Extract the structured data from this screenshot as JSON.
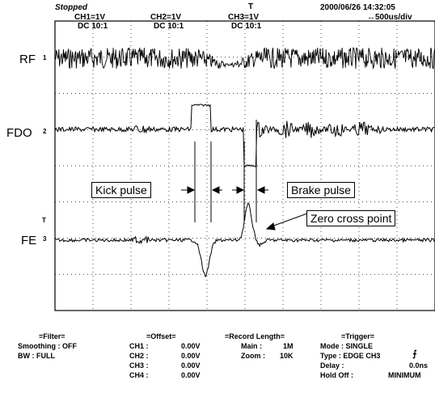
{
  "header": {
    "status": "Stopped",
    "trigger_marker": "T",
    "datetime": "2000/06/26  14:32:05",
    "ch1_scale": "CH1=1V",
    "ch1_coupling": "DC  10:1",
    "ch2_scale": "CH2=1V",
    "ch2_coupling": "DC  10:1",
    "ch3_scale": "CH3=1V",
    "ch3_coupling": "DC  10:1",
    "timebase": "↔500us/div"
  },
  "channels": {
    "rf_label": "RF",
    "rf_marker": "1",
    "fdo_label": "FDO",
    "fdo_marker": "2",
    "fe_label": "FE",
    "fe_marker": "3",
    "trig_level_marker": "T"
  },
  "annotations": {
    "kick_pulse": "Kick pulse",
    "brake_pulse": "Brake pulse",
    "zero_cross": "Zero cross point"
  },
  "footer": {
    "filter_title": "=Filter=",
    "smoothing": "Smoothing : OFF",
    "bw": "BW : FULL",
    "offset_title": "=Offset=",
    "offsets": [
      {
        "ch": "CH1 :",
        "val": "0.00V"
      },
      {
        "ch": "CH2 :",
        "val": "0.00V"
      },
      {
        "ch": "CH3 :",
        "val": "0.00V"
      },
      {
        "ch": "CH4 :",
        "val": "0.00V"
      }
    ],
    "record_title": "=Record Length=",
    "main": "Main :",
    "main_val": "1M",
    "zoom": "Zoom :",
    "zoom_val": "10K",
    "trigger_title": "=Trigger=",
    "mode": "Mode : SINGLE",
    "type": "Type : EDGE CH3",
    "delay": "Delay :",
    "delay_val": "0.0ns",
    "holdoff": "Hold Off :",
    "holdoff_val": "MINIMUM"
  },
  "colors": {
    "trace": "#000000",
    "background": "#ffffff",
    "grid": "#000000"
  }
}
